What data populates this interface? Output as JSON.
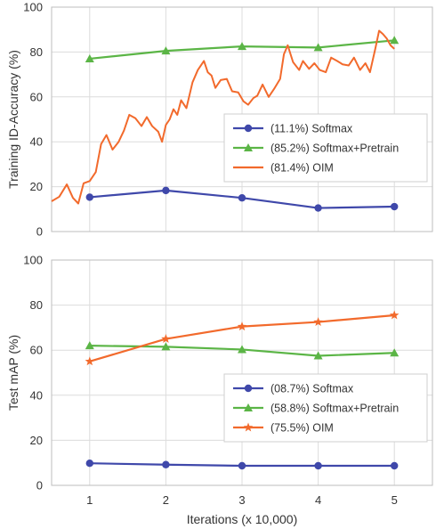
{
  "chart_data": [
    {
      "type": "line",
      "ylabel": "Training ID-Accuracy (%)",
      "xlabel": "",
      "xlim": [
        0.5,
        5.5
      ],
      "ylim": [
        0,
        100
      ],
      "xticks": [
        1,
        2,
        3,
        4,
        5
      ],
      "yticks": [
        0,
        20,
        40,
        60,
        80,
        100
      ],
      "grid": true,
      "legend_position": "right",
      "series": [
        {
          "name": "(11.1%) Softmax",
          "marker": "circle",
          "color": "#3f48aa",
          "x": [
            1,
            2,
            3,
            4,
            5
          ],
          "y": [
            15.3,
            18.3,
            15.0,
            10.5,
            11.1
          ]
        },
        {
          "name": "(85.2%) Softmax+Pretrain",
          "marker": "triangle",
          "color": "#5bb546",
          "x": [
            1,
            2,
            3,
            4,
            5
          ],
          "y": [
            77.0,
            80.5,
            82.5,
            82.0,
            85.2
          ]
        },
        {
          "name": "(81.4%) OIM",
          "marker": "none",
          "color": "#f26a2c",
          "x": [
            0.5,
            0.6,
            0.7,
            0.78,
            0.85,
            0.92,
            1.0,
            1.08,
            1.15,
            1.22,
            1.3,
            1.38,
            1.45,
            1.52,
            1.6,
            1.68,
            1.75,
            1.82,
            1.9,
            1.95,
            2.0,
            2.05,
            2.1,
            2.15,
            2.2,
            2.27,
            2.35,
            2.42,
            2.5,
            2.55,
            2.6,
            2.65,
            2.72,
            2.8,
            2.87,
            2.95,
            3.02,
            3.08,
            3.15,
            3.2,
            3.27,
            3.35,
            3.42,
            3.5,
            3.55,
            3.6,
            3.67,
            3.75,
            3.8,
            3.88,
            3.95,
            4.02,
            4.1,
            4.17,
            4.25,
            4.32,
            4.4,
            4.47,
            4.55,
            4.62,
            4.68,
            4.75,
            4.8,
            4.85,
            4.9,
            4.95,
            5.0
          ],
          "y": [
            13.5,
            15.5,
            21.0,
            15.0,
            12.5,
            21.5,
            22.5,
            26.5,
            39.0,
            43.0,
            36.5,
            40.0,
            45.0,
            52.0,
            50.5,
            47.0,
            51.0,
            47.0,
            44.5,
            40.0,
            47.5,
            50.0,
            54.5,
            52.0,
            58.5,
            55.0,
            66.5,
            72.0,
            76.0,
            71.0,
            69.5,
            64.0,
            67.5,
            68.0,
            62.5,
            62.0,
            58.0,
            56.5,
            59.5,
            60.5,
            65.5,
            60.0,
            63.5,
            68.0,
            79.0,
            83.0,
            75.5,
            72.0,
            76.0,
            72.5,
            75.0,
            72.0,
            71.0,
            77.5,
            76.0,
            74.5,
            74.0,
            77.5,
            72.0,
            75.0,
            71.0,
            81.5,
            89.5,
            88.0,
            86.0,
            83.0,
            81.4
          ]
        }
      ]
    },
    {
      "type": "line",
      "ylabel": "Test mAP (%)",
      "xlabel": "Iterations (x 10,000)",
      "xlim": [
        0.5,
        5.5
      ],
      "ylim": [
        0,
        100
      ],
      "xticks": [
        1,
        2,
        3,
        4,
        5
      ],
      "yticks": [
        0,
        20,
        40,
        60,
        80,
        100
      ],
      "grid": true,
      "legend_position": "bottom-right",
      "series": [
        {
          "name": "(08.7%) Softmax",
          "marker": "circle",
          "color": "#3f48aa",
          "x": [
            1,
            2,
            3,
            4,
            5
          ],
          "y": [
            9.8,
            9.2,
            8.7,
            8.7,
            8.7
          ]
        },
        {
          "name": "(58.8%) Softmax+Pretrain",
          "marker": "triangle",
          "color": "#5bb546",
          "x": [
            1,
            2,
            3,
            4,
            5
          ],
          "y": [
            62.0,
            61.5,
            60.3,
            57.5,
            58.8
          ]
        },
        {
          "name": "(75.5%) OIM",
          "marker": "star",
          "color": "#f26a2c",
          "x": [
            1,
            2,
            3,
            4,
            5
          ],
          "y": [
            55.0,
            65.0,
            70.5,
            72.5,
            75.5
          ]
        }
      ]
    }
  ]
}
